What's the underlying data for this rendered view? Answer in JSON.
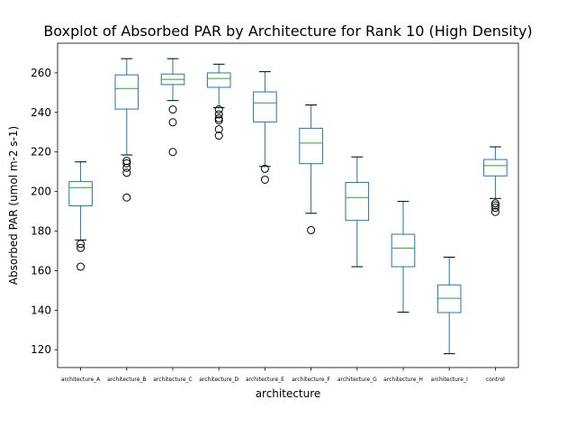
{
  "chart_data": {
    "type": "boxplot",
    "title": "Boxplot of Absorbed PAR by Architecture for Rank 10 (High Density)",
    "xlabel": "architecture",
    "ylabel": "Absorbed PAR (umol m-2 s-1)",
    "ylim": [
      111,
      275
    ],
    "yticks": [
      120,
      140,
      160,
      180,
      200,
      220,
      240,
      260
    ],
    "grid": false,
    "legend": "none",
    "colors": {
      "box": "#1f77b4",
      "median": "#2ca02c",
      "whisker": "#1f77b4",
      "cap": "#000000",
      "outlier": "#000000"
    },
    "categories": [
      "architecture_A",
      "architecture_B",
      "architecture_C",
      "architecture_D",
      "architecture_E",
      "architecture_F",
      "architecture_G",
      "architecture_H",
      "architecture_I",
      "control"
    ],
    "boxes": [
      {
        "whisker_low": 175.5,
        "q1": 192.8,
        "median": 202.0,
        "q3": 205.0,
        "whisker_high": 215.0,
        "outliers": [
          173.5,
          171.5,
          162.0
        ]
      },
      {
        "whisker_low": 218.5,
        "q1": 241.7,
        "median": 252.1,
        "q3": 259.0,
        "whisker_high": 267.2,
        "outliers": [
          215.5,
          214.3,
          212.0,
          209.5,
          197.0
        ]
      },
      {
        "whisker_low": 246.0,
        "q1": 254.1,
        "median": 256.7,
        "q3": 259.4,
        "whisker_high": 267.2,
        "outliers": [
          241.5,
          235.0,
          220.0
        ]
      },
      {
        "whisker_low": 242.4,
        "q1": 252.7,
        "median": 257.2,
        "q3": 260.0,
        "whisker_high": 264.4,
        "outliers": [
          241.5,
          239.0,
          237.0,
          236.0,
          231.5,
          228.3
        ]
      },
      {
        "whisker_low": 212.7,
        "q1": 235.2,
        "median": 244.8,
        "q3": 250.4,
        "whisker_high": 260.6,
        "outliers": [
          211.5,
          206.0
        ]
      },
      {
        "whisker_low": 189.0,
        "q1": 214.1,
        "median": 224.5,
        "q3": 232.0,
        "whisker_high": 243.8,
        "outliers": [
          180.5
        ]
      },
      {
        "whisker_low": 162.0,
        "q1": 185.4,
        "median": 197.0,
        "q3": 204.6,
        "whisker_high": 217.5,
        "outliers": []
      },
      {
        "whisker_low": 139.0,
        "q1": 162.0,
        "median": 171.4,
        "q3": 178.4,
        "whisker_high": 195.0,
        "outliers": []
      },
      {
        "whisker_low": 118.0,
        "q1": 138.8,
        "median": 146.0,
        "q3": 152.8,
        "whisker_high": 166.8,
        "outliers": []
      },
      {
        "whisker_low": 196.5,
        "q1": 207.9,
        "median": 213.1,
        "q3": 216.2,
        "whisker_high": 222.6,
        "outliers": [
          194.0,
          193.0,
          191.8,
          189.7
        ]
      }
    ]
  }
}
